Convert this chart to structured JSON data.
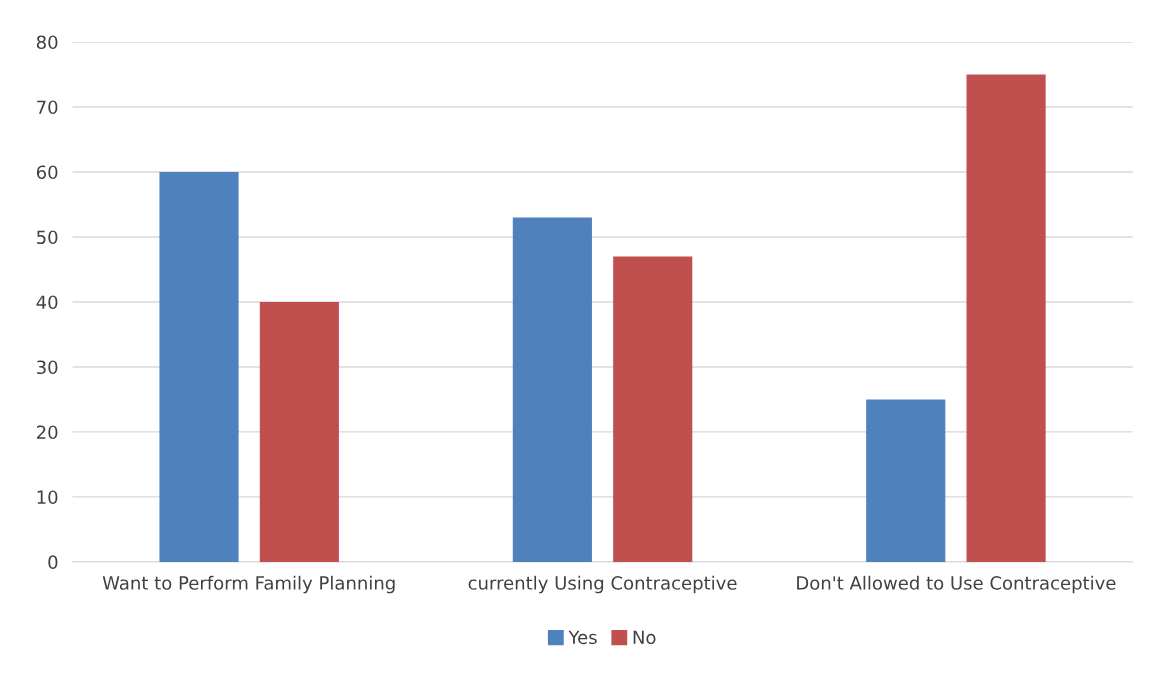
{
  "chart_data": {
    "type": "bar",
    "categories": [
      "Want to Perform Family Planning",
      "currently Using Contraceptive",
      "Don't Allowed to Use Contraceptive"
    ],
    "series": [
      {
        "name": "Yes",
        "color": "#4f81bd",
        "values": [
          60,
          53,
          25
        ]
      },
      {
        "name": "No",
        "color": "#c0504d",
        "values": [
          40,
          47,
          75
        ]
      }
    ],
    "ylim": [
      0,
      80
    ],
    "yticks": [
      0,
      10,
      20,
      30,
      40,
      50,
      60,
      70,
      80
    ],
    "grid": "y",
    "legend": "bottom"
  }
}
